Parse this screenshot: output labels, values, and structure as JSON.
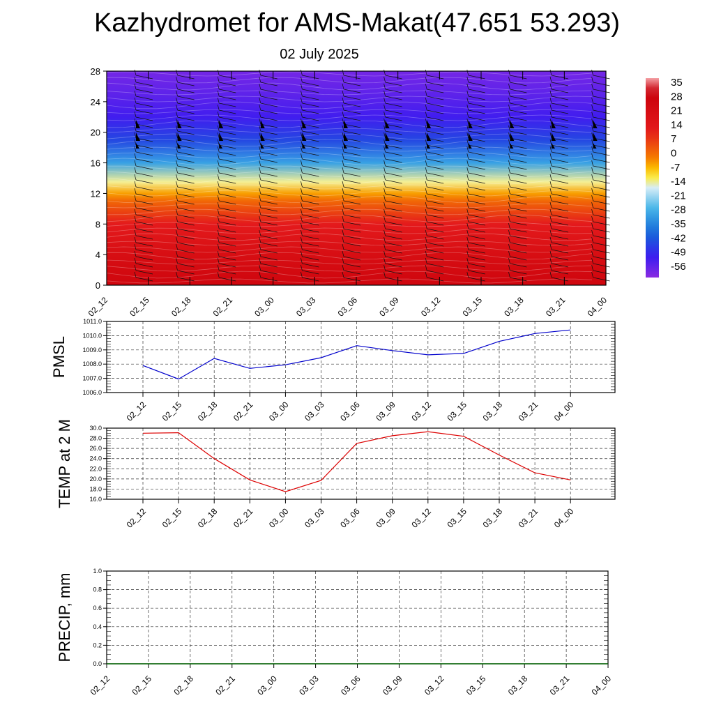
{
  "title": "Kazhydromet for AMS-Makat(47.651 53.293)",
  "subtitle": "02 July 2025",
  "chart_data": [
    {
      "type": "heatmap",
      "title": "",
      "ylim": [
        0,
        28
      ],
      "y_ticks": [
        "0",
        "4",
        "8",
        "12",
        "16",
        "20",
        "24",
        "28"
      ],
      "x_ticks": [
        "02_12",
        "02_15",
        "02_18",
        "02_21",
        "03_00",
        "03_03",
        "03_06",
        "03_09",
        "03_12",
        "03_15",
        "03_18",
        "03_21",
        "04_00"
      ],
      "colorbar_labels": [
        "35",
        "28",
        "21",
        "14",
        "7",
        "0",
        "-7",
        "-14",
        "-21",
        "-28",
        "-35",
        "-42",
        "-49",
        "-56"
      ],
      "colorbar_range": [
        -63,
        42
      ],
      "profile_heights": [
        0,
        4,
        8,
        11,
        12,
        13.5,
        16,
        19,
        22,
        25,
        28
      ],
      "profile_values": [
        30,
        24,
        14,
        3,
        -3,
        -12,
        -30,
        -45,
        -53,
        -57,
        -60
      ],
      "colors": {
        "dark_red": "#c8000a",
        "red": "#e41a1c",
        "orange": "#f57c00",
        "yellow": "#ffe600",
        "pale": "#eef6f9",
        "sky": "#42b3e8",
        "blue": "#1565d8",
        "deep_blue": "#3a1cf0",
        "violet": "#8a2be2"
      }
    },
    {
      "type": "line",
      "ylabel": "PMSL",
      "x": [
        "02_12",
        "02_15",
        "02_18",
        "02_21",
        "03_00",
        "03_03",
        "03_06",
        "03_09",
        "03_12",
        "03_15",
        "03_18",
        "03_21",
        "04_00"
      ],
      "values": [
        1007.9,
        1006.95,
        1008.4,
        1007.7,
        1007.95,
        1008.45,
        1009.3,
        1008.95,
        1008.65,
        1008.75,
        1009.6,
        1010.15,
        1010.4
      ],
      "ylim": [
        1006.0,
        1011.0
      ],
      "y_ticks": [
        "1006.0",
        "1007.0",
        "1008.0",
        "1009.0",
        "1010.0",
        "1011.0"
      ],
      "color": "#0000cc",
      "grid": true
    },
    {
      "type": "line",
      "ylabel": "TEMP at 2 M",
      "x": [
        "02_12",
        "02_15",
        "02_18",
        "02_21",
        "03_00",
        "03_03",
        "03_06",
        "03_09",
        "03_12",
        "03_15",
        "03_18",
        "03_21",
        "04_00"
      ],
      "values": [
        29.0,
        29.1,
        24.0,
        19.8,
        17.5,
        19.7,
        27.0,
        28.5,
        29.3,
        28.4,
        24.7,
        21.2,
        19.8
      ],
      "ylim": [
        16.0,
        30.0
      ],
      "y_ticks": [
        "16.0",
        "18.0",
        "20.0",
        "22.0",
        "24.0",
        "26.0",
        "28.0",
        "30.0"
      ],
      "color": "#dd0000",
      "grid": true
    },
    {
      "type": "line",
      "ylabel": "PRECIP, mm",
      "x": [
        "02_12",
        "02_15",
        "02_18",
        "02_21",
        "03_00",
        "03_03",
        "03_06",
        "03_09",
        "03_12",
        "03_15",
        "03_18",
        "03_21",
        "04_00"
      ],
      "values": [
        0,
        0,
        0,
        0,
        0,
        0,
        0,
        0,
        0,
        0,
        0,
        0,
        0
      ],
      "ylim": [
        0.0,
        1.0
      ],
      "y_ticks": [
        "0.0",
        "0.2",
        "0.4",
        "0.6",
        "0.8",
        "1.0"
      ],
      "color": "#006400",
      "grid": true
    }
  ]
}
